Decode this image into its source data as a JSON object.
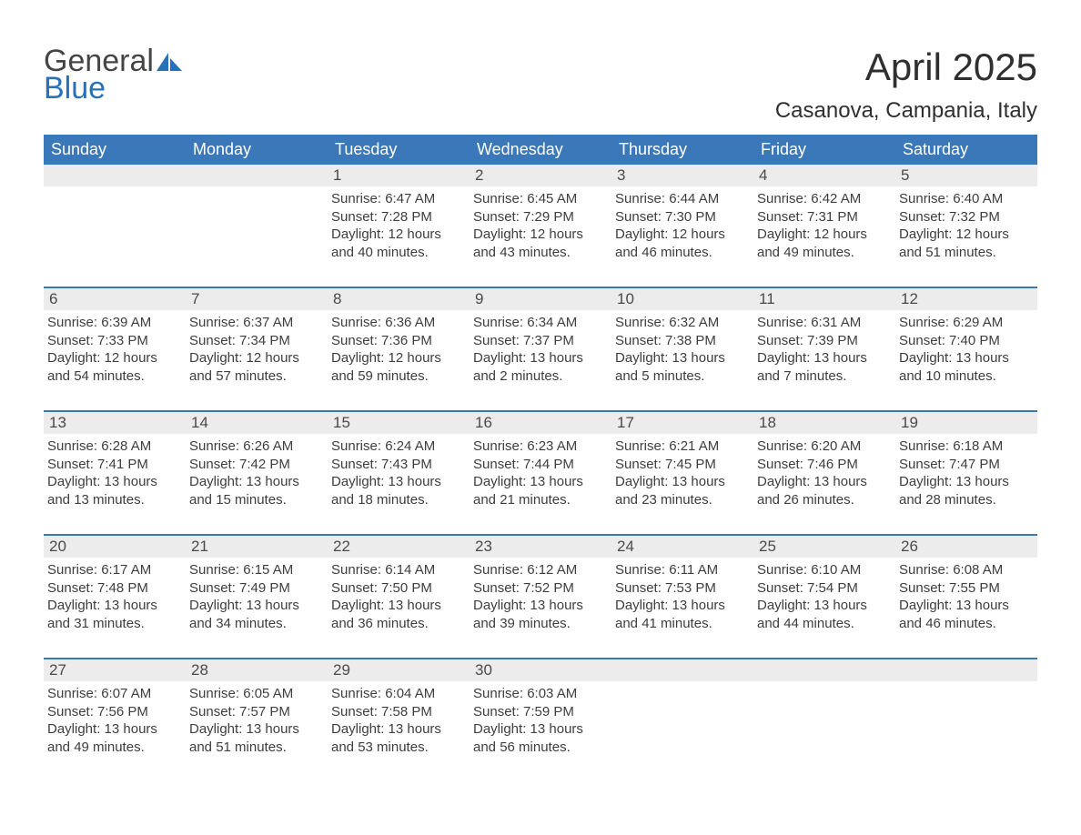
{
  "logo": {
    "word1": "General",
    "word2": "Blue"
  },
  "title": "April 2025",
  "subtitle": "Casanova, Campania, Italy",
  "colors": {
    "header_bg": "#3a78b9",
    "header_text": "#ffffff",
    "daynum_bg": "#edecec",
    "text": "#3a3a3a",
    "logo_blue": "#2a70b8"
  },
  "day_headers": [
    "Sunday",
    "Monday",
    "Tuesday",
    "Wednesday",
    "Thursday",
    "Friday",
    "Saturday"
  ],
  "weeks": [
    [
      {
        "num": "",
        "sunrise": "",
        "sunset": "",
        "daylight": ""
      },
      {
        "num": "",
        "sunrise": "",
        "sunset": "",
        "daylight": ""
      },
      {
        "num": "1",
        "sunrise": "Sunrise: 6:47 AM",
        "sunset": "Sunset: 7:28 PM",
        "daylight": "Daylight: 12 hours and 40 minutes."
      },
      {
        "num": "2",
        "sunrise": "Sunrise: 6:45 AM",
        "sunset": "Sunset: 7:29 PM",
        "daylight": "Daylight: 12 hours and 43 minutes."
      },
      {
        "num": "3",
        "sunrise": "Sunrise: 6:44 AM",
        "sunset": "Sunset: 7:30 PM",
        "daylight": "Daylight: 12 hours and 46 minutes."
      },
      {
        "num": "4",
        "sunrise": "Sunrise: 6:42 AM",
        "sunset": "Sunset: 7:31 PM",
        "daylight": "Daylight: 12 hours and 49 minutes."
      },
      {
        "num": "5",
        "sunrise": "Sunrise: 6:40 AM",
        "sunset": "Sunset: 7:32 PM",
        "daylight": "Daylight: 12 hours and 51 minutes."
      }
    ],
    [
      {
        "num": "6",
        "sunrise": "Sunrise: 6:39 AM",
        "sunset": "Sunset: 7:33 PM",
        "daylight": "Daylight: 12 hours and 54 minutes."
      },
      {
        "num": "7",
        "sunrise": "Sunrise: 6:37 AM",
        "sunset": "Sunset: 7:34 PM",
        "daylight": "Daylight: 12 hours and 57 minutes."
      },
      {
        "num": "8",
        "sunrise": "Sunrise: 6:36 AM",
        "sunset": "Sunset: 7:36 PM",
        "daylight": "Daylight: 12 hours and 59 minutes."
      },
      {
        "num": "9",
        "sunrise": "Sunrise: 6:34 AM",
        "sunset": "Sunset: 7:37 PM",
        "daylight": "Daylight: 13 hours and 2 minutes."
      },
      {
        "num": "10",
        "sunrise": "Sunrise: 6:32 AM",
        "sunset": "Sunset: 7:38 PM",
        "daylight": "Daylight: 13 hours and 5 minutes."
      },
      {
        "num": "11",
        "sunrise": "Sunrise: 6:31 AM",
        "sunset": "Sunset: 7:39 PM",
        "daylight": "Daylight: 13 hours and 7 minutes."
      },
      {
        "num": "12",
        "sunrise": "Sunrise: 6:29 AM",
        "sunset": "Sunset: 7:40 PM",
        "daylight": "Daylight: 13 hours and 10 minutes."
      }
    ],
    [
      {
        "num": "13",
        "sunrise": "Sunrise: 6:28 AM",
        "sunset": "Sunset: 7:41 PM",
        "daylight": "Daylight: 13 hours and 13 minutes."
      },
      {
        "num": "14",
        "sunrise": "Sunrise: 6:26 AM",
        "sunset": "Sunset: 7:42 PM",
        "daylight": "Daylight: 13 hours and 15 minutes."
      },
      {
        "num": "15",
        "sunrise": "Sunrise: 6:24 AM",
        "sunset": "Sunset: 7:43 PM",
        "daylight": "Daylight: 13 hours and 18 minutes."
      },
      {
        "num": "16",
        "sunrise": "Sunrise: 6:23 AM",
        "sunset": "Sunset: 7:44 PM",
        "daylight": "Daylight: 13 hours and 21 minutes."
      },
      {
        "num": "17",
        "sunrise": "Sunrise: 6:21 AM",
        "sunset": "Sunset: 7:45 PM",
        "daylight": "Daylight: 13 hours and 23 minutes."
      },
      {
        "num": "18",
        "sunrise": "Sunrise: 6:20 AM",
        "sunset": "Sunset: 7:46 PM",
        "daylight": "Daylight: 13 hours and 26 minutes."
      },
      {
        "num": "19",
        "sunrise": "Sunrise: 6:18 AM",
        "sunset": "Sunset: 7:47 PM",
        "daylight": "Daylight: 13 hours and 28 minutes."
      }
    ],
    [
      {
        "num": "20",
        "sunrise": "Sunrise: 6:17 AM",
        "sunset": "Sunset: 7:48 PM",
        "daylight": "Daylight: 13 hours and 31 minutes."
      },
      {
        "num": "21",
        "sunrise": "Sunrise: 6:15 AM",
        "sunset": "Sunset: 7:49 PM",
        "daylight": "Daylight: 13 hours and 34 minutes."
      },
      {
        "num": "22",
        "sunrise": "Sunrise: 6:14 AM",
        "sunset": "Sunset: 7:50 PM",
        "daylight": "Daylight: 13 hours and 36 minutes."
      },
      {
        "num": "23",
        "sunrise": "Sunrise: 6:12 AM",
        "sunset": "Sunset: 7:52 PM",
        "daylight": "Daylight: 13 hours and 39 minutes."
      },
      {
        "num": "24",
        "sunrise": "Sunrise: 6:11 AM",
        "sunset": "Sunset: 7:53 PM",
        "daylight": "Daylight: 13 hours and 41 minutes."
      },
      {
        "num": "25",
        "sunrise": "Sunrise: 6:10 AM",
        "sunset": "Sunset: 7:54 PM",
        "daylight": "Daylight: 13 hours and 44 minutes."
      },
      {
        "num": "26",
        "sunrise": "Sunrise: 6:08 AM",
        "sunset": "Sunset: 7:55 PM",
        "daylight": "Daylight: 13 hours and 46 minutes."
      }
    ],
    [
      {
        "num": "27",
        "sunrise": "Sunrise: 6:07 AM",
        "sunset": "Sunset: 7:56 PM",
        "daylight": "Daylight: 13 hours and 49 minutes."
      },
      {
        "num": "28",
        "sunrise": "Sunrise: 6:05 AM",
        "sunset": "Sunset: 7:57 PM",
        "daylight": "Daylight: 13 hours and 51 minutes."
      },
      {
        "num": "29",
        "sunrise": "Sunrise: 6:04 AM",
        "sunset": "Sunset: 7:58 PM",
        "daylight": "Daylight: 13 hours and 53 minutes."
      },
      {
        "num": "30",
        "sunrise": "Sunrise: 6:03 AM",
        "sunset": "Sunset: 7:59 PM",
        "daylight": "Daylight: 13 hours and 56 minutes."
      },
      {
        "num": "",
        "sunrise": "",
        "sunset": "",
        "daylight": ""
      },
      {
        "num": "",
        "sunrise": "",
        "sunset": "",
        "daylight": ""
      },
      {
        "num": "",
        "sunrise": "",
        "sunset": "",
        "daylight": ""
      }
    ]
  ]
}
